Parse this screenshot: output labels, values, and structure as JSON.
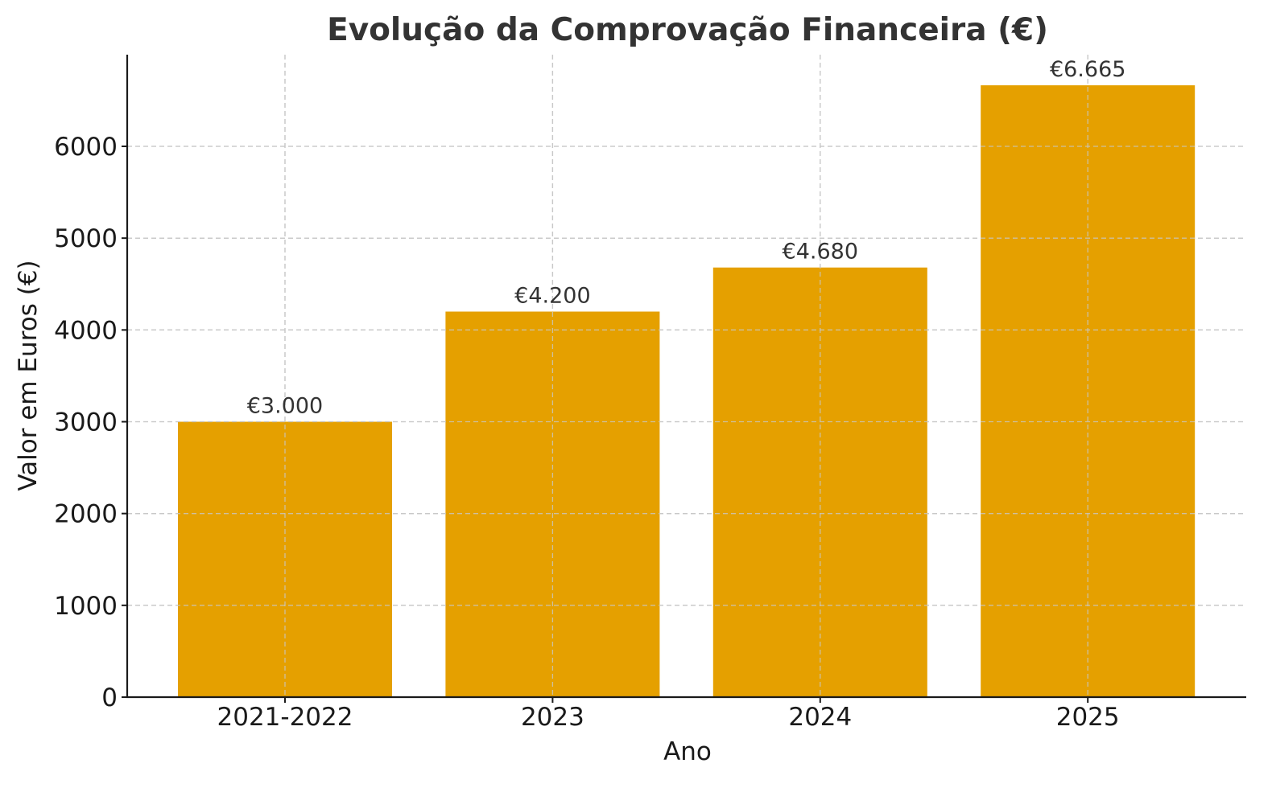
{
  "chart_data": {
    "type": "bar",
    "title": "Evolução da Comprovação Financeira (€)",
    "xlabel": "Ano",
    "ylabel": "Valor em Euros (€)",
    "categories": [
      "2021-2022",
      "2023",
      "2024",
      "2025"
    ],
    "values": [
      3000,
      4200,
      4680,
      6665
    ],
    "data_labels": [
      "€3.000",
      "€4.200",
      "€4.680",
      "€6.665"
    ],
    "ylim": [
      0,
      7000
    ],
    "yticks": [
      0,
      1000,
      2000,
      3000,
      4000,
      5000,
      6000
    ],
    "ytick_labels": [
      "0",
      "1000",
      "2000",
      "3000",
      "4000",
      "5000",
      "6000"
    ],
    "grid": true,
    "bar_color": "#E5A000"
  }
}
